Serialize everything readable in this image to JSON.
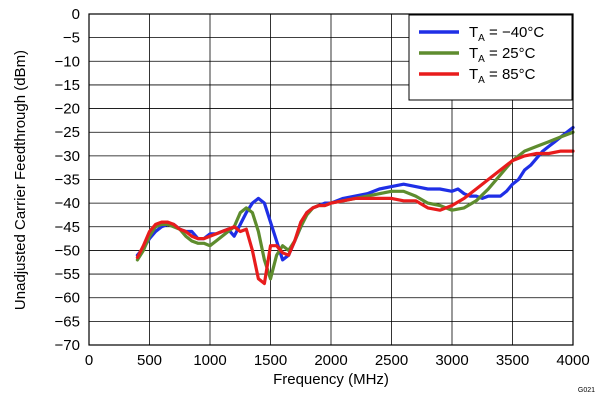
{
  "figure_id": "G021",
  "chart_data": {
    "type": "line",
    "title": "",
    "xlabel": "Frequency (MHz)",
    "ylabel": "Unadjusted Carrier Feedthrough (dBm)",
    "xlim": [
      0,
      4000
    ],
    "ylim": [
      -70,
      0
    ],
    "x_ticks": [
      0,
      500,
      1000,
      1500,
      2000,
      2500,
      3000,
      3500,
      4000
    ],
    "y_ticks": [
      0,
      -5,
      -10,
      -15,
      -20,
      -25,
      -30,
      -35,
      -40,
      -45,
      -50,
      -55,
      -60,
      -65,
      -70
    ],
    "x_tick_labels": [
      "0",
      "500",
      "1000",
      "1500",
      "2000",
      "2500",
      "3000",
      "3500",
      "4000"
    ],
    "y_tick_labels": [
      "0",
      "−5",
      "−10",
      "−15",
      "−20",
      "−25",
      "−30",
      "−35",
      "−40",
      "−45",
      "−50",
      "−55",
      "−60",
      "−65",
      "−70"
    ],
    "grid": true,
    "legend_position": "top-right",
    "series": [
      {
        "name": "T_A = −40°C",
        "label_main": "T",
        "label_sub": "A",
        "label_rest": " = −40°C",
        "color": "#1f2fe6",
        "x": [
          400,
          450,
          500,
          550,
          600,
          650,
          700,
          750,
          800,
          850,
          900,
          950,
          1000,
          1050,
          1100,
          1150,
          1200,
          1250,
          1300,
          1350,
          1400,
          1450,
          1500,
          1550,
          1600,
          1650,
          1700,
          1750,
          1800,
          1850,
          1900,
          1950,
          2000,
          2100,
          2200,
          2300,
          2400,
          2500,
          2600,
          2700,
          2800,
          2900,
          3000,
          3050,
          3100,
          3150,
          3200,
          3250,
          3300,
          3350,
          3400,
          3450,
          3500,
          3550,
          3600,
          3650,
          3700,
          3750,
          3800,
          3850,
          3900,
          3950,
          4000
        ],
        "y": [
          -51,
          -49.5,
          -47.5,
          -46,
          -45,
          -44.5,
          -44.5,
          -45.5,
          -46,
          -46,
          -47.5,
          -47.5,
          -46.5,
          -46.5,
          -46,
          -45.5,
          -47,
          -44.5,
          -42,
          -40,
          -39,
          -40,
          -44,
          -48,
          -52,
          -51,
          -48,
          -45,
          -42,
          -41,
          -40.5,
          -40,
          -40,
          -39,
          -38.5,
          -38,
          -37,
          -36.5,
          -36,
          -36.5,
          -37,
          -37,
          -37.5,
          -37,
          -38,
          -38.5,
          -38.5,
          -39,
          -38.5,
          -38.5,
          -38.5,
          -37.5,
          -36,
          -35,
          -33,
          -32,
          -30.5,
          -29,
          -28,
          -27,
          -26,
          -25,
          -24
        ]
      },
      {
        "name": "T_A = 25°C",
        "label_main": "T",
        "label_sub": "A",
        "label_rest": " = 25°C",
        "color": "#5e8c2e",
        "x": [
          400,
          450,
          500,
          550,
          600,
          650,
          700,
          750,
          800,
          850,
          900,
          950,
          1000,
          1050,
          1100,
          1150,
          1200,
          1250,
          1300,
          1350,
          1400,
          1450,
          1500,
          1550,
          1600,
          1650,
          1700,
          1750,
          1800,
          1850,
          1900,
          1950,
          2000,
          2100,
          2200,
          2300,
          2400,
          2500,
          2600,
          2700,
          2800,
          2900,
          3000,
          3100,
          3200,
          3300,
          3400,
          3500,
          3600,
          3700,
          3800,
          3900,
          4000
        ],
        "y": [
          -52,
          -50,
          -47,
          -45,
          -44.5,
          -44.5,
          -45,
          -45.5,
          -47,
          -48,
          -48.5,
          -48.5,
          -49,
          -48,
          -47,
          -46,
          -45,
          -42,
          -41,
          -42,
          -46,
          -52,
          -56,
          -51,
          -49,
          -50,
          -48,
          -45,
          -42.5,
          -41,
          -40.5,
          -40.5,
          -40,
          -39.5,
          -39,
          -38.5,
          -38,
          -37.5,
          -37.5,
          -38.5,
          -40,
          -40.5,
          -41.5,
          -41,
          -39.5,
          -37,
          -34,
          -31,
          -29,
          -28,
          -27,
          -26,
          -25
        ]
      },
      {
        "name": "T_A = 85°C",
        "label_main": "T",
        "label_sub": "A",
        "label_rest": " = 85°C",
        "color": "#e81c1c",
        "x": [
          400,
          450,
          500,
          550,
          600,
          650,
          700,
          750,
          800,
          850,
          900,
          950,
          1000,
          1050,
          1100,
          1150,
          1200,
          1250,
          1300,
          1350,
          1400,
          1450,
          1500,
          1550,
          1600,
          1650,
          1700,
          1750,
          1800,
          1850,
          1900,
          1950,
          2000,
          2100,
          2200,
          2300,
          2400,
          2500,
          2600,
          2700,
          2800,
          2900,
          3000,
          3100,
          3200,
          3300,
          3400,
          3500,
          3600,
          3700,
          3800,
          3900,
          4000
        ],
        "y": [
          -51.5,
          -49,
          -46,
          -44.5,
          -44,
          -44,
          -44.5,
          -45.5,
          -46,
          -47,
          -47.5,
          -47.5,
          -47,
          -46.5,
          -46,
          -45.5,
          -45,
          -46,
          -45.5,
          -50,
          -56,
          -57,
          -49,
          -49,
          -50.5,
          -51,
          -48,
          -44,
          -42,
          -41,
          -40.5,
          -40.5,
          -40,
          -39.5,
          -39,
          -39,
          -39,
          -39,
          -39.5,
          -39.5,
          -41,
          -41.5,
          -40.5,
          -39,
          -37,
          -35,
          -33,
          -31,
          -30,
          -29.5,
          -29.5,
          -29,
          -29
        ]
      }
    ]
  }
}
